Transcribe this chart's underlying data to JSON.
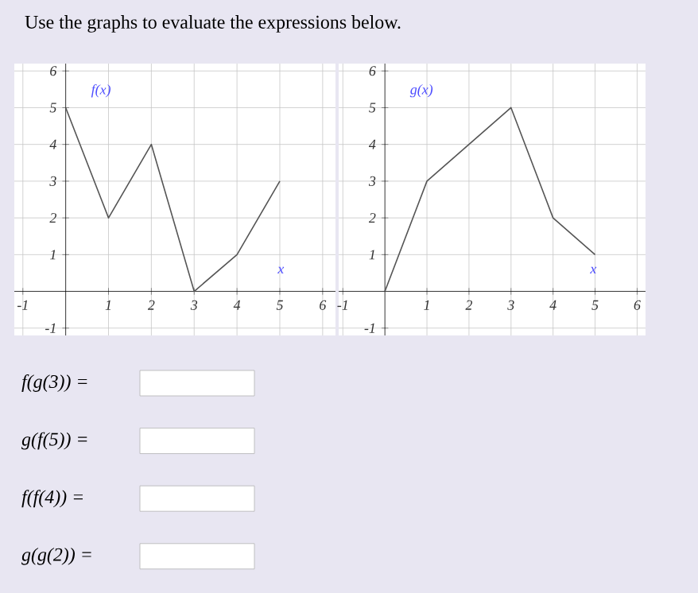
{
  "chart_data": [
    {
      "type": "line",
      "title": "Use the graphs to evaluate the expressions below.",
      "xlabel": "x",
      "ylabel": "f(x)",
      "x": [
        0,
        1,
        2,
        3,
        4,
        5
      ],
      "values": [
        5,
        2,
        4,
        0,
        1,
        3
      ],
      "color": "#555555",
      "xlim": [
        -1.2,
        6.3
      ],
      "ylim": [
        -1.2,
        6.2
      ],
      "xticks": [
        -1,
        1,
        2,
        3,
        4,
        5,
        6
      ],
      "yticks": [
        -1,
        1,
        2,
        3,
        4,
        5,
        6
      ],
      "grid": true,
      "marker": "none",
      "annotations": [
        "f(g(3)) =",
        "g(f(5)) =",
        "f(f(4)) =",
        "g(g(2)) ="
      ]
    },
    {
      "type": "line",
      "xlabel": "x",
      "ylabel": "g(x)",
      "x": [
        0,
        1,
        2,
        3,
        4,
        5
      ],
      "values": [
        0,
        3,
        4,
        5,
        2,
        1
      ],
      "color": "#555555",
      "xlim": [
        -1.1,
        6.2
      ],
      "ylim": [
        -1.2,
        6.2
      ],
      "xticks": [
        -1,
        1,
        2,
        3,
        4,
        5,
        6
      ],
      "yticks": [
        -1,
        1,
        2,
        3,
        4,
        5,
        6
      ],
      "grid": true,
      "marker": "none"
    }
  ]
}
